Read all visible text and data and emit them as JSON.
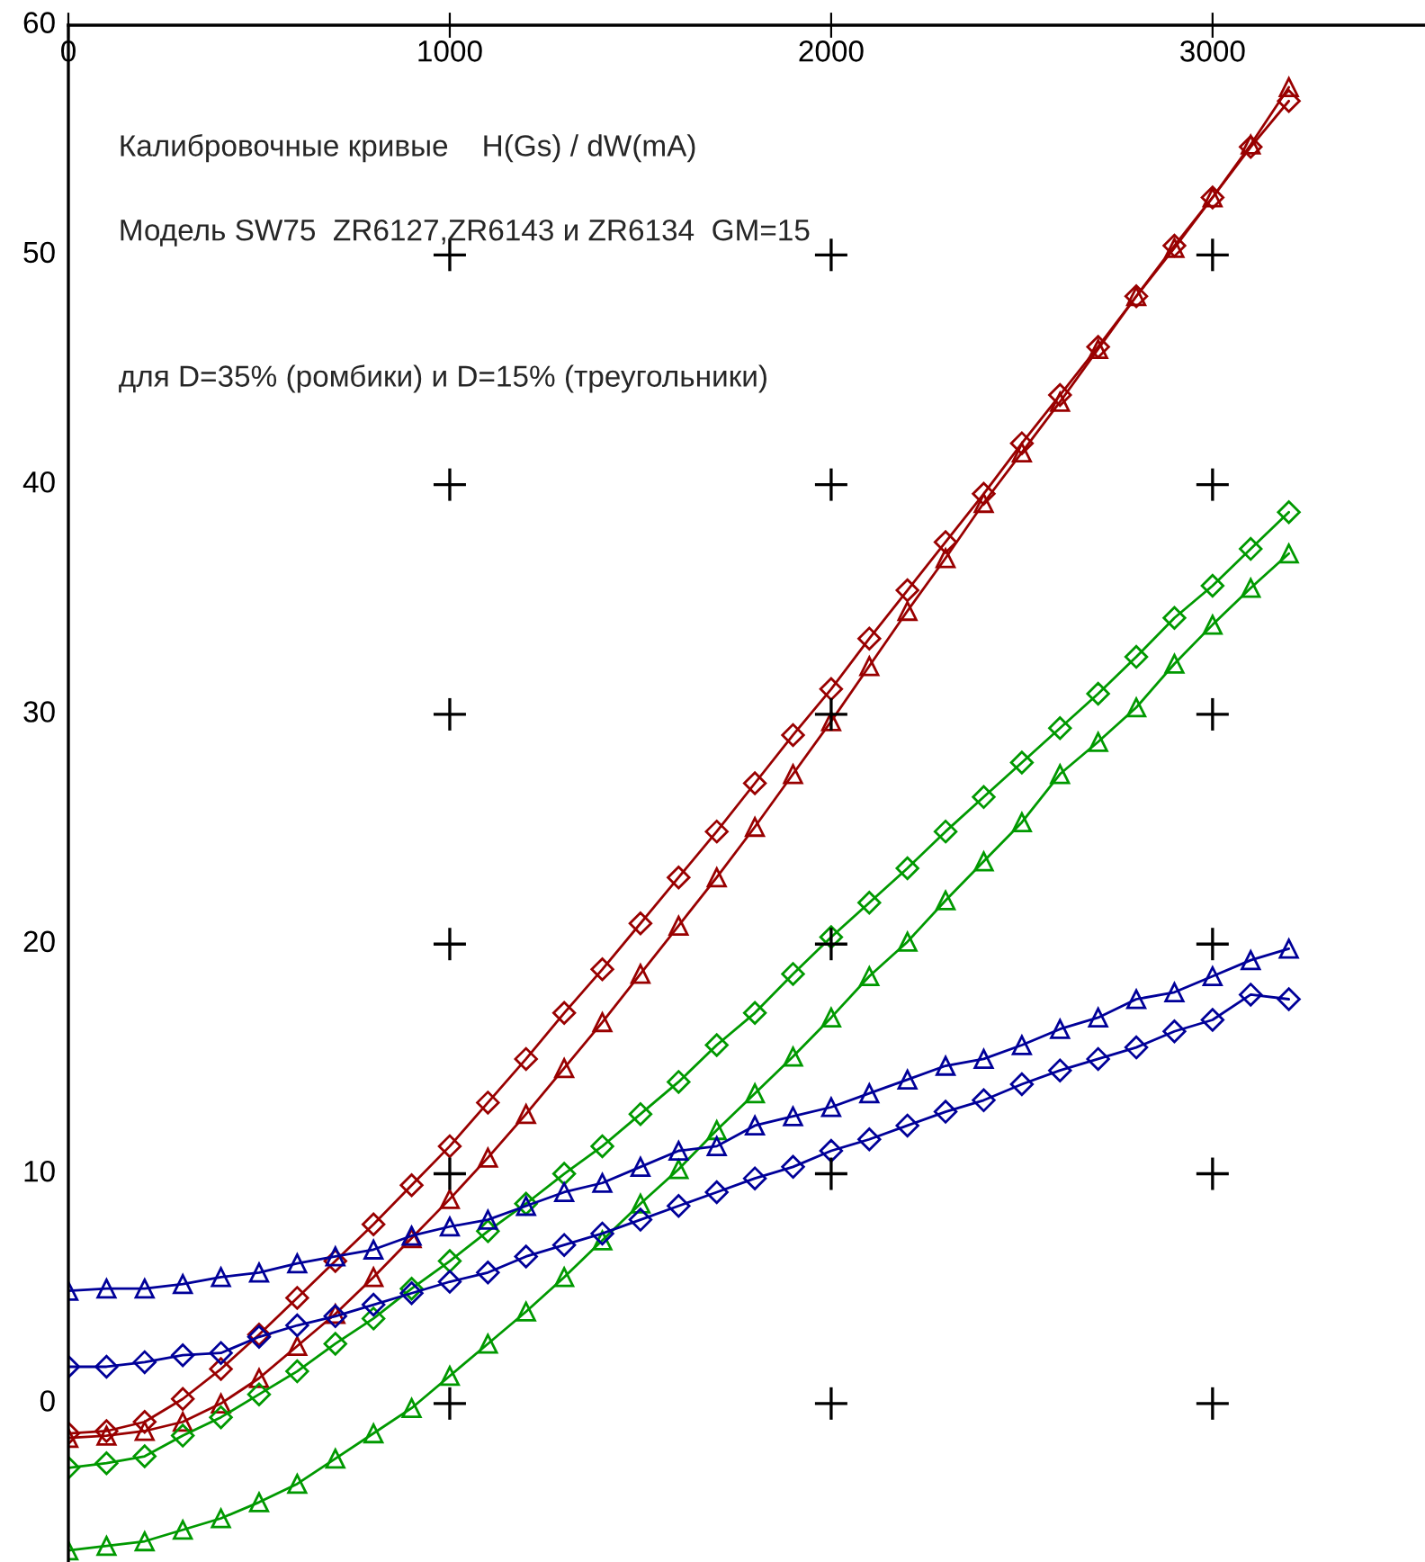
{
  "chart_data": {
    "type": "line",
    "annotations": [
      "Калибровочные кривые    H(Gs) / dW(mA)",
      "Модель SW75  ZR6127,ZR6143 и ZR6134  GM=15",
      "для D=35% (ромбики) и D=15% (треугольники)"
    ],
    "x": [
      0,
      100,
      200,
      300,
      400,
      500,
      600,
      700,
      800,
      900,
      1000,
      1100,
      1200,
      1300,
      1400,
      1500,
      1600,
      1700,
      1800,
      1900,
      2000,
      2100,
      2200,
      2300,
      2400,
      2500,
      2600,
      2700,
      2800,
      2900,
      3000,
      3100,
      3200
    ],
    "series": [
      {
        "color": "#990000",
        "marker": "diamond",
        "values": [
          -1.3,
          -1.2,
          -0.8,
          0.2,
          1.5,
          3.0,
          4.6,
          6.2,
          7.8,
          9.5,
          11.2,
          13.1,
          15.0,
          17.0,
          18.9,
          20.9,
          22.9,
          24.9,
          27.0,
          29.1,
          31.1,
          33.3,
          35.4,
          37.5,
          39.6,
          41.8,
          43.9,
          46.0,
          48.2,
          50.4,
          52.5,
          54.7,
          56.7
        ]
      },
      {
        "color": "#990000",
        "marker": "triangle",
        "values": [
          -1.5,
          -1.4,
          -1.2,
          -0.8,
          0.0,
          1.1,
          2.5,
          3.9,
          5.5,
          7.2,
          8.9,
          10.7,
          12.6,
          14.6,
          16.6,
          18.7,
          20.8,
          22.9,
          25.1,
          27.4,
          29.7,
          32.1,
          34.5,
          36.8,
          39.2,
          41.4,
          43.6,
          45.9,
          48.2,
          50.3,
          52.5,
          54.8,
          57.3
        ]
      },
      {
        "color": "#009900",
        "marker": "diamond",
        "values": [
          -2.8,
          -2.6,
          -2.3,
          -1.4,
          -0.6,
          0.4,
          1.4,
          2.6,
          3.7,
          5.0,
          6.2,
          7.5,
          8.7,
          10.0,
          11.2,
          12.6,
          14.0,
          15.6,
          17.0,
          18.7,
          20.3,
          21.8,
          23.3,
          24.9,
          26.4,
          27.9,
          29.4,
          30.9,
          32.5,
          34.2,
          35.6,
          37.2,
          38.8
        ]
      },
      {
        "color": "#009900",
        "marker": "triangle",
        "values": [
          -6.4,
          -6.2,
          -6.0,
          -5.5,
          -5.0,
          -4.3,
          -3.5,
          -2.4,
          -1.3,
          -0.2,
          1.2,
          2.6,
          4.0,
          5.5,
          7.1,
          8.7,
          10.2,
          11.9,
          13.5,
          15.1,
          16.8,
          18.6,
          20.1,
          21.9,
          23.6,
          25.3,
          27.4,
          28.8,
          30.3,
          32.2,
          33.9,
          35.5,
          37.0
        ]
      },
      {
        "color": "#000099",
        "marker": "diamond",
        "values": [
          1.6,
          1.6,
          1.8,
          2.1,
          2.2,
          2.9,
          3.4,
          3.8,
          4.3,
          4.8,
          5.3,
          5.7,
          6.4,
          6.9,
          7.4,
          8.0,
          8.6,
          9.2,
          9.8,
          10.3,
          11.0,
          11.5,
          12.1,
          12.7,
          13.2,
          13.9,
          14.5,
          15.0,
          15.5,
          16.2,
          16.7,
          17.8,
          17.6
        ]
      },
      {
        "color": "#000099",
        "marker": "triangle",
        "values": [
          4.9,
          5.0,
          5.0,
          5.2,
          5.5,
          5.7,
          6.1,
          6.4,
          6.7,
          7.3,
          7.7,
          8.0,
          8.6,
          9.2,
          9.6,
          10.3,
          11.0,
          11.2,
          12.1,
          12.5,
          12.9,
          13.5,
          14.1,
          14.7,
          15.0,
          15.6,
          16.3,
          16.8,
          17.6,
          17.9,
          18.6,
          19.3,
          19.8
        ]
      }
    ],
    "xlim": [
      0,
      3557
    ],
    "ylim": [
      -6.9,
      60
    ],
    "xticks": [
      0,
      1000,
      2000,
      3000
    ],
    "yticks": [
      0,
      10,
      20,
      30,
      40,
      50,
      60
    ]
  }
}
